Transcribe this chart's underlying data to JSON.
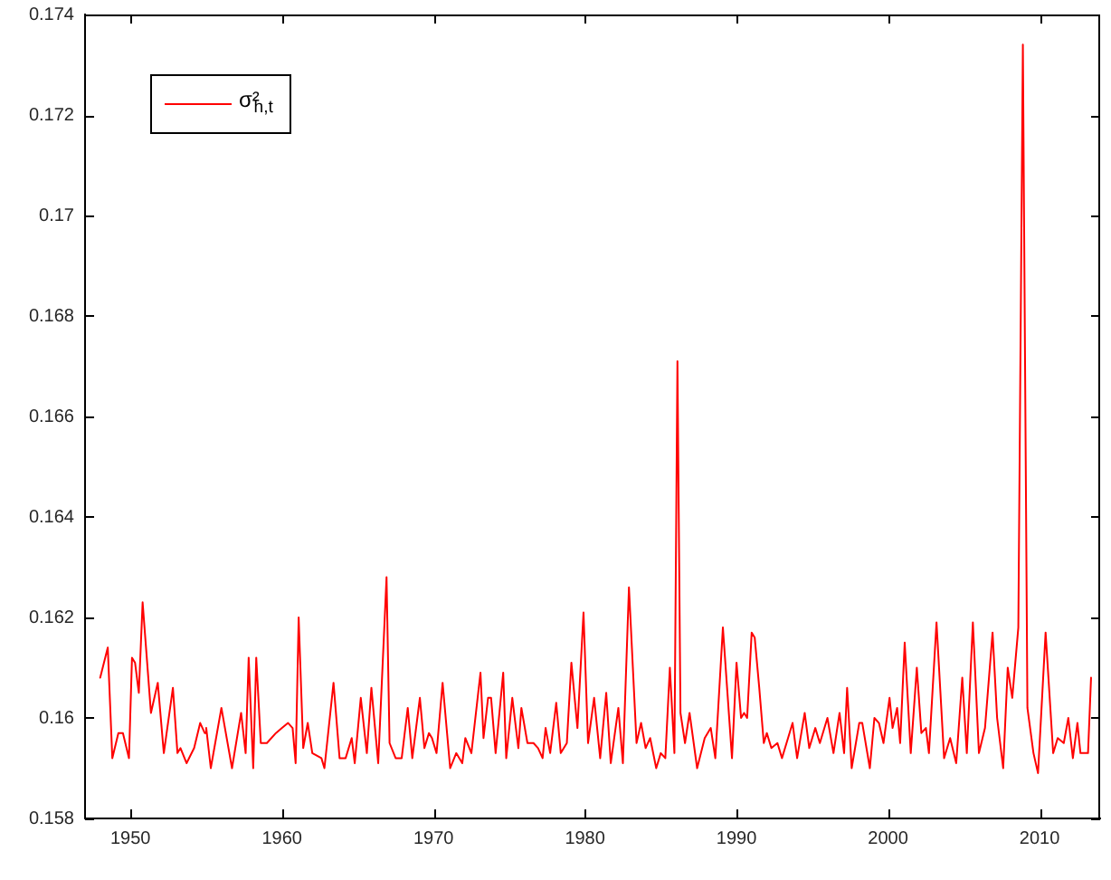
{
  "chart_data": {
    "type": "line",
    "legend": "top left",
    "line_style": "solid",
    "xlim": [
      1947,
      2014
    ],
    "xticks": [
      1950,
      1960,
      1970,
      1980,
      1990,
      2000,
      2010
    ],
    "ylim": [
      0.158,
      0.174
    ],
    "yticks": [
      0.158,
      0.16,
      0.162,
      0.164,
      0.166,
      0.168,
      0.17,
      0.172,
      0.174
    ],
    "x": [
      1948.0,
      1948.5,
      1948.8,
      1949.2,
      1949.5,
      1949.9,
      1950.1,
      1950.3,
      1950.55,
      1950.8,
      1951.35,
      1951.8,
      1952.2,
      1952.8,
      1953.1,
      1953.3,
      1953.7,
      1954.2,
      1954.6,
      1954.9,
      1955.0,
      1955.3,
      1956.0,
      1956.7,
      1957.3,
      1957.6,
      1957.8,
      1958.1,
      1958.3,
      1958.6,
      1959.0,
      1959.6,
      1960.0,
      1960.4,
      1960.7,
      1960.9,
      1961.1,
      1961.4,
      1961.7,
      1962.0,
      1962.6,
      1962.8,
      1963.4,
      1963.8,
      1964.2,
      1964.6,
      1964.8,
      1965.2,
      1965.6,
      1965.9,
      1966.35,
      1966.9,
      1967.1,
      1967.5,
      1967.9,
      1968.3,
      1968.6,
      1969.1,
      1969.4,
      1969.7,
      1969.9,
      1970.2,
      1970.6,
      1971.1,
      1971.5,
      1971.9,
      1972.1,
      1972.5,
      1973.1,
      1973.3,
      1973.6,
      1973.8,
      1974.1,
      1974.6,
      1974.8,
      1975.2,
      1975.6,
      1975.8,
      1976.2,
      1976.6,
      1976.9,
      1977.2,
      1977.4,
      1977.7,
      1978.1,
      1978.4,
      1978.8,
      1979.1,
      1979.5,
      1979.9,
      1980.2,
      1980.6,
      1981.0,
      1981.4,
      1981.7,
      1982.2,
      1982.5,
      1982.9,
      1983.4,
      1983.7,
      1984.0,
      1984.3,
      1984.7,
      1985.0,
      1985.3,
      1985.6,
      1985.9,
      1986.1,
      1986.3,
      1986.6,
      1986.9,
      1987.4,
      1987.9,
      1988.3,
      1988.6,
      1989.1,
      1989.7,
      1990.0,
      1990.3,
      1990.5,
      1990.7,
      1991.0,
      1991.2,
      1991.5,
      1991.8,
      1992.0,
      1992.3,
      1992.7,
      1993.0,
      1993.4,
      1993.7,
      1994.0,
      1994.5,
      1994.8,
      1995.2,
      1995.5,
      1996.0,
      1996.4,
      1996.8,
      1997.1,
      1997.3,
      1997.6,
      1998.1,
      1998.3,
      1998.8,
      1999.1,
      1999.4,
      1999.7,
      2000.1,
      2000.3,
      2000.6,
      2000.8,
      2001.1,
      2001.5,
      2001.9,
      2002.2,
      2002.5,
      2002.7,
      2003.2,
      2003.7,
      2004.1,
      2004.5,
      2004.9,
      2005.2,
      2005.6,
      2006.0,
      2006.4,
      2006.9,
      2007.2,
      2007.6,
      2007.9,
      2008.2,
      2008.6,
      2008.9,
      2009.2,
      2009.6,
      2009.9,
      2010.4,
      2010.9,
      2011.2,
      2011.6,
      2011.9,
      2012.2,
      2012.5,
      2012.7,
      2013.2,
      2013.4
    ],
    "series": [
      {
        "name": "σ²$_{h,t}$",
        "color": "#ff0000",
        "values": [
          0.1608,
          0.1614,
          0.1592,
          0.1597,
          0.1597,
          0.1592,
          0.1612,
          0.1611,
          0.1605,
          0.1623,
          0.1601,
          0.1607,
          0.1593,
          0.1606,
          0.1593,
          0.1594,
          0.1591,
          0.1594,
          0.1599,
          0.1597,
          0.1598,
          0.159,
          0.1602,
          0.159,
          0.1601,
          0.1593,
          0.1612,
          0.159,
          0.1612,
          0.1595,
          0.1595,
          0.1597,
          0.1598,
          0.1599,
          0.1598,
          0.1591,
          0.162,
          0.1594,
          0.1599,
          0.1593,
          0.1592,
          0.159,
          0.1607,
          0.1592,
          0.1592,
          0.1596,
          0.1591,
          0.1604,
          0.1593,
          0.1606,
          0.1591,
          0.1628,
          0.1595,
          0.1592,
          0.1592,
          0.1602,
          0.1592,
          0.1604,
          0.1594,
          0.1597,
          0.1596,
          0.1593,
          0.1607,
          0.159,
          0.1593,
          0.1591,
          0.1596,
          0.1593,
          0.1609,
          0.1596,
          0.1604,
          0.1604,
          0.1593,
          0.1609,
          0.1592,
          0.1604,
          0.1594,
          0.1602,
          0.1595,
          0.1595,
          0.1594,
          0.1592,
          0.1598,
          0.1593,
          0.1603,
          0.1593,
          0.1595,
          0.1611,
          0.1598,
          0.1621,
          0.1595,
          0.1604,
          0.1592,
          0.1605,
          0.1591,
          0.1602,
          0.1591,
          0.1626,
          0.1595,
          0.1599,
          0.1594,
          0.1596,
          0.159,
          0.1593,
          0.1592,
          0.161,
          0.1593,
          0.1671,
          0.1601,
          0.1595,
          0.1601,
          0.159,
          0.1596,
          0.1598,
          0.1592,
          0.1618,
          0.1592,
          0.1611,
          0.16,
          0.1601,
          0.16,
          0.1617,
          0.1616,
          0.1606,
          0.1595,
          0.1597,
          0.1594,
          0.1595,
          0.1592,
          0.1596,
          0.1599,
          0.1592,
          0.1601,
          0.1594,
          0.1598,
          0.1595,
          0.16,
          0.1593,
          0.1601,
          0.1593,
          0.1606,
          0.159,
          0.1599,
          0.1599,
          0.159,
          0.16,
          0.1599,
          0.1595,
          0.1604,
          0.1598,
          0.1602,
          0.1595,
          0.1615,
          0.1593,
          0.161,
          0.1597,
          0.1598,
          0.1593,
          0.1619,
          0.1592,
          0.1596,
          0.1591,
          0.1608,
          0.1593,
          0.1619,
          0.1593,
          0.1598,
          0.1617,
          0.16,
          0.159,
          0.161,
          0.1604,
          0.1618,
          0.1734,
          0.1602,
          0.1593,
          0.1589,
          0.1617,
          0.1593,
          0.1596,
          0.1595,
          0.16,
          0.1592,
          0.1599,
          0.1593,
          0.1593,
          0.1608
        ]
      }
    ]
  }
}
